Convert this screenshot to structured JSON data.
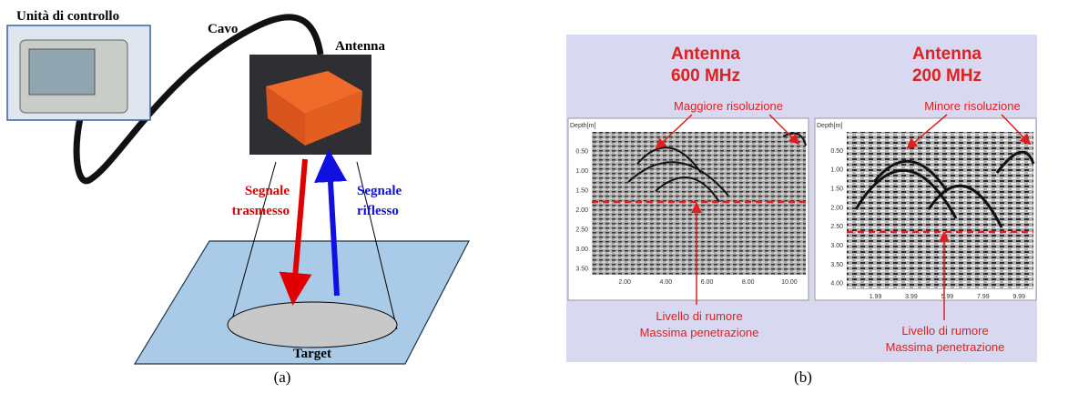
{
  "panel_a": {
    "control_unit": "Unità di controllo",
    "cable": "Cavo",
    "antenna": "Antenna",
    "transmitted": [
      "Segnale",
      "trasmesso"
    ],
    "reflected": [
      "Segnale",
      "riflesso"
    ],
    "target": "Target",
    "caption": "(a)"
  },
  "panel_b": {
    "left": {
      "title": [
        "Antenna",
        "600 MHz"
      ],
      "note": "Maggiore risoluzione",
      "noise": [
        "Livello di rumore",
        "Massima penetrazione"
      ],
      "axis_label": "Depth[m]",
      "yticks": [
        "0.50",
        "1.00",
        "1.50",
        "2.00",
        "2.50",
        "3.00",
        "3.50"
      ],
      "xticks": [
        "2.00",
        "4.00",
        "6.00",
        "8.00",
        "10.00"
      ]
    },
    "right": {
      "title": [
        "Antenna",
        "200 MHz"
      ],
      "note": "Minore risoluzione",
      "noise": [
        "Livello di rumore",
        "Massima penetrazione"
      ],
      "axis_label": "Depth[m]",
      "yticks": [
        "0.50",
        "1.00",
        "1.50",
        "2.00",
        "2.50",
        "3.00",
        "3.50",
        "4.00"
      ],
      "xticks": [
        "1.99",
        "3.99",
        "5.99",
        "7.99",
        "9.99"
      ]
    },
    "caption": "(b)"
  }
}
